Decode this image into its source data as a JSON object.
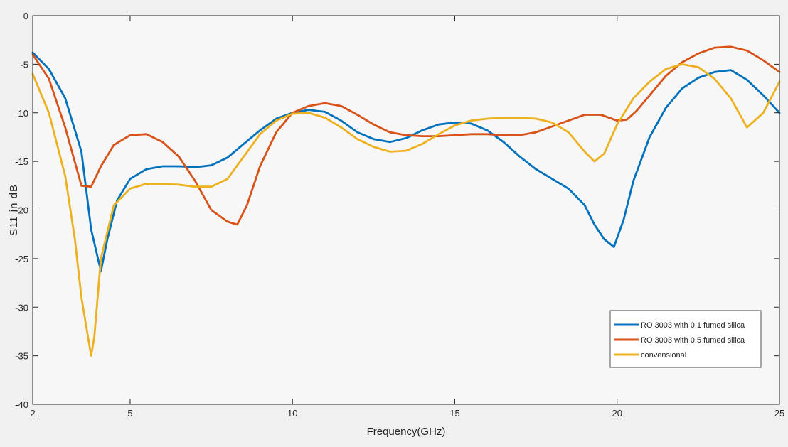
{
  "chart_data": {
    "type": "line",
    "title": "",
    "xlabel": "Frequency(GHz)",
    "ylabel": "S11 in dB",
    "xlim": [
      2,
      25
    ],
    "ylim": [
      -40,
      0
    ],
    "x_ticks": [
      2,
      5,
      10,
      15,
      20,
      25
    ],
    "y_ticks": [
      0,
      -5,
      -10,
      -15,
      -20,
      -25,
      -30,
      -35,
      -40
    ],
    "grid": false,
    "legend_position": "bottom-right",
    "series": [
      {
        "name": "RO 3003 with 0.1 fumed silica",
        "color": "#0072BD",
        "x": [
          2,
          2.5,
          3,
          3.5,
          3.8,
          4.1,
          4.3,
          4.6,
          5,
          5.5,
          6,
          6.5,
          7,
          7.5,
          8,
          8.5,
          9,
          9.5,
          10,
          10.5,
          11,
          11.5,
          12,
          12.5,
          13,
          13.5,
          14,
          14.5,
          15,
          15.5,
          16,
          16.5,
          17,
          17.5,
          18,
          18.5,
          19,
          19.3,
          19.6,
          19.9,
          20.2,
          20.5,
          21,
          21.5,
          22,
          22.5,
          23,
          23.5,
          24,
          24.5,
          25
        ],
        "y": [
          -3.8,
          -5.5,
          -8.5,
          -14,
          -22,
          -26.3,
          -23,
          -19,
          -16.8,
          -15.8,
          -15.5,
          -15.5,
          -15.6,
          -15.4,
          -14.6,
          -13.2,
          -11.8,
          -10.6,
          -10,
          -9.7,
          -9.9,
          -10.8,
          -12,
          -12.7,
          -13,
          -12.6,
          -11.8,
          -11.2,
          -11,
          -11.1,
          -11.8,
          -13,
          -14.5,
          -15.8,
          -16.8,
          -17.8,
          -19.5,
          -21.5,
          -23,
          -23.8,
          -21,
          -17,
          -12.5,
          -9.5,
          -7.5,
          -6.4,
          -5.8,
          -5.6,
          -6.6,
          -8.2,
          -10
        ]
      },
      {
        "name": "RO 3003 with 0.5 fumed silica",
        "color": "#D95319",
        "x": [
          2,
          2.5,
          3,
          3.5,
          3.8,
          4.1,
          4.5,
          5,
          5.5,
          6,
          6.5,
          7,
          7.5,
          8,
          8.3,
          8.6,
          9,
          9.5,
          10,
          10.5,
          11,
          11.5,
          12,
          12.5,
          13,
          13.5,
          14,
          14.5,
          15,
          15.5,
          16,
          16.5,
          17,
          17.5,
          18,
          18.5,
          19,
          19.5,
          20,
          20.3,
          20.6,
          21,
          21.5,
          22,
          22.5,
          23,
          23.5,
          24,
          24.5,
          25
        ],
        "y": [
          -4,
          -6.5,
          -11.5,
          -17.5,
          -17.6,
          -15.5,
          -13.3,
          -12.3,
          -12.2,
          -13,
          -14.5,
          -17,
          -20,
          -21.2,
          -21.5,
          -19.5,
          -15.5,
          -12,
          -10,
          -9.3,
          -9,
          -9.3,
          -10.2,
          -11.2,
          -12,
          -12.3,
          -12.4,
          -12.4,
          -12.3,
          -12.2,
          -12.2,
          -12.3,
          -12.3,
          -12,
          -11.4,
          -10.8,
          -10.2,
          -10.2,
          -10.8,
          -10.7,
          -9.8,
          -8.2,
          -6.2,
          -4.8,
          -3.9,
          -3.3,
          -3.2,
          -3.6,
          -4.6,
          -5.8
        ]
      },
      {
        "name": "convensional",
        "color": "#EDB120",
        "x": [
          2,
          2.5,
          3,
          3.3,
          3.5,
          3.7,
          3.8,
          3.9,
          4.1,
          4.5,
          5,
          5.5,
          6,
          6.5,
          7,
          7.5,
          8,
          8.5,
          9,
          9.5,
          10,
          10.5,
          11,
          11.5,
          12,
          12.5,
          13,
          13.5,
          14,
          14.5,
          15,
          15.5,
          16,
          16.5,
          17,
          17.5,
          18,
          18.5,
          19,
          19.3,
          19.6,
          20,
          20.5,
          21,
          21.5,
          22,
          22.5,
          23,
          23.5,
          24,
          24.5,
          25
        ],
        "y": [
          -6,
          -10,
          -16.5,
          -23,
          -29,
          -33,
          -35,
          -33,
          -25,
          -19.5,
          -17.8,
          -17.3,
          -17.3,
          -17.4,
          -17.6,
          -17.6,
          -16.8,
          -14.5,
          -12.2,
          -10.8,
          -10.1,
          -10,
          -10.5,
          -11.5,
          -12.7,
          -13.5,
          -14,
          -13.9,
          -13.2,
          -12.2,
          -11.3,
          -10.8,
          -10.6,
          -10.5,
          -10.5,
          -10.6,
          -11,
          -12,
          -14,
          -15,
          -14.2,
          -11.2,
          -8.5,
          -6.8,
          -5.5,
          -5,
          -5.3,
          -6.5,
          -8.5,
          -11.5,
          -10,
          -6.8
        ]
      }
    ]
  }
}
